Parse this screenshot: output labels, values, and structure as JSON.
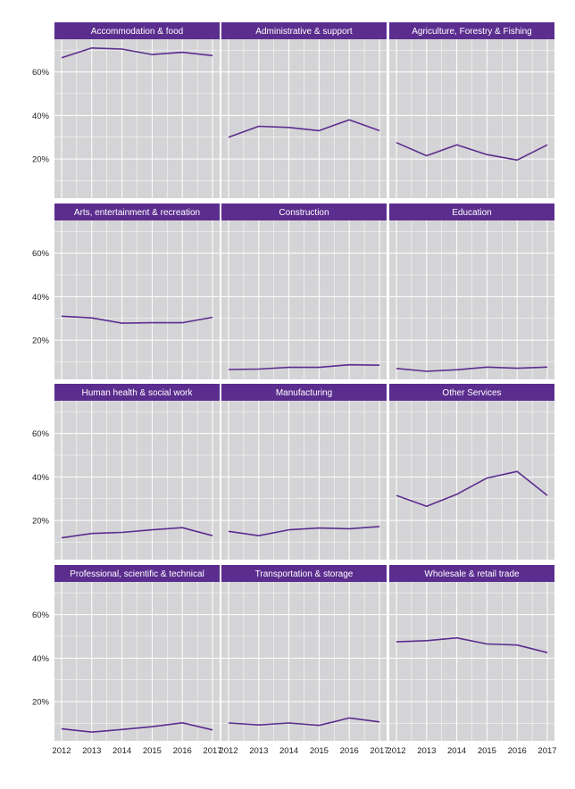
{
  "chart_data": {
    "type": "line",
    "facet_layout": {
      "rows": 4,
      "cols": 3
    },
    "x": [
      2012,
      2013,
      2014,
      2015,
      2016,
      2017
    ],
    "ylim": [
      0.02,
      0.75
    ],
    "y_ticks": [
      0.2,
      0.4,
      0.6
    ],
    "y_tick_labels": [
      "20%",
      "40%",
      "60%"
    ],
    "grid": true,
    "colors": {
      "line": "#5b2d8e",
      "strip": "#5b2d8e",
      "panel": "#d4d4d6",
      "grid": "#ffffff"
    },
    "panels": [
      {
        "title": "Accommodation & food",
        "values": [
          0.665,
          0.71,
          0.705,
          0.68,
          0.69,
          0.675
        ]
      },
      {
        "title": "Administrative & support",
        "values": [
          0.3,
          0.35,
          0.345,
          0.33,
          0.38,
          0.33
        ]
      },
      {
        "title": "Agriculture, Forestry & Fishing",
        "values": [
          0.275,
          0.215,
          0.265,
          0.22,
          0.195,
          0.265
        ]
      },
      {
        "title": "Arts, entertainment & recreation",
        "values": [
          0.31,
          0.302,
          0.278,
          0.28,
          0.28,
          0.305
        ]
      },
      {
        "title": "Construction",
        "values": [
          0.065,
          0.067,
          0.075,
          0.075,
          0.087,
          0.085
        ]
      },
      {
        "title": "Education",
        "values": [
          0.07,
          0.057,
          0.064,
          0.076,
          0.071,
          0.076
        ]
      },
      {
        "title": "Human health & social work",
        "values": [
          0.12,
          0.14,
          0.145,
          0.157,
          0.167,
          0.13
        ]
      },
      {
        "title": "Manufacturing",
        "values": [
          0.15,
          0.13,
          0.157,
          0.165,
          0.162,
          0.172
        ]
      },
      {
        "title": "Other Services",
        "values": [
          0.315,
          0.265,
          0.32,
          0.395,
          0.425,
          0.315
        ]
      },
      {
        "title": "Professional, scientific & technical",
        "values": [
          0.075,
          0.06,
          0.072,
          0.085,
          0.103,
          0.07
        ]
      },
      {
        "title": "Transportation & storage",
        "values": [
          0.102,
          0.093,
          0.102,
          0.091,
          0.125,
          0.107
        ]
      },
      {
        "title": "Wholesale & retail trade",
        "values": [
          0.475,
          0.48,
          0.493,
          0.465,
          0.46,
          0.425
        ]
      }
    ]
  }
}
